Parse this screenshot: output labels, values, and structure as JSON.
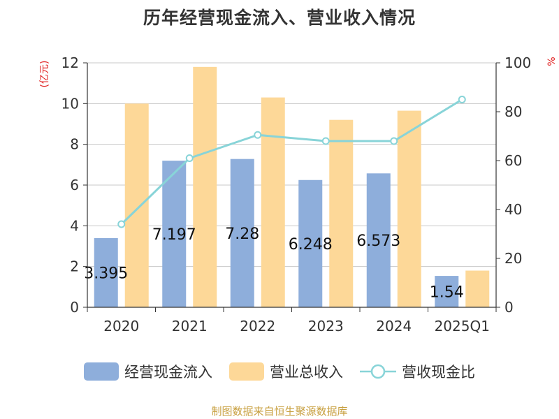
{
  "colors": {
    "cash_inflow": "#8eaedb",
    "revenue": "#fdd898",
    "ratio": "#88d4d8",
    "axis": "#333333",
    "grid": "#c8c8c8",
    "unit": "#e02020",
    "source": "#c8a040"
  },
  "chart_data": {
    "type": "bar",
    "title": "历年经营现金流入、营业收入情况",
    "categories": [
      "2020",
      "2021",
      "2022",
      "2023",
      "2024",
      "2025Q1"
    ],
    "y_left": {
      "unit_label": "(亿元)",
      "ylim": [
        0,
        12
      ],
      "ticks": [
        "0",
        "2",
        "4",
        "6",
        "8",
        "10",
        "12"
      ]
    },
    "y_right": {
      "unit_label": "%",
      "ylim": [
        0,
        100
      ],
      "ticks": [
        "0",
        "20",
        "40",
        "60",
        "80",
        "100"
      ]
    },
    "series": [
      {
        "name": "经营现金流入",
        "type": "bar",
        "axis": "left",
        "values": [
          3.395,
          7.197,
          7.28,
          6.248,
          6.573,
          1.54
        ],
        "data_labels": [
          "3.395",
          "7.197",
          "7.28",
          "6.248",
          "6.573",
          "1.54"
        ]
      },
      {
        "name": "营业总收入",
        "type": "bar",
        "axis": "left",
        "values": [
          10.0,
          11.8,
          10.3,
          9.2,
          9.65,
          1.8
        ]
      },
      {
        "name": "营收现金比",
        "type": "line",
        "axis": "right",
        "values": [
          34.0,
          61.0,
          70.5,
          68.0,
          68.0,
          85.0
        ]
      }
    ],
    "grid": true,
    "legend": "bottom"
  },
  "source": "制图数据来自恒生聚源数据库"
}
